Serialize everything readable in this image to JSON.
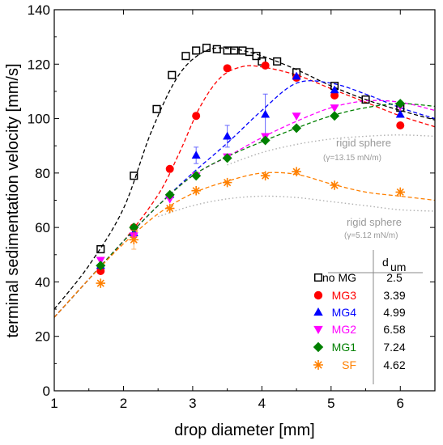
{
  "chart_data": {
    "type": "scatter",
    "xlabel": "drop diameter [mm]",
    "ylabel": "terminal sedimentation velocity [mm/s]",
    "xlim": [
      1,
      6.5
    ],
    "ylim": [
      0,
      140
    ],
    "xticks": [
      1,
      2,
      3,
      4,
      5,
      6
    ],
    "yticks": [
      0,
      20,
      40,
      60,
      80,
      100,
      120,
      140
    ],
    "legend_placement": "bottom-right",
    "legend_header": {
      "label": "d",
      "sub": "um"
    },
    "series": [
      {
        "name": "no MG",
        "dum": "2.5",
        "marker": "open-square",
        "color": "#000000",
        "x": [
          1.67,
          2.15,
          2.48,
          2.7,
          2.9,
          3.05,
          3.2,
          3.35,
          3.5,
          3.6,
          3.72,
          3.82,
          3.92,
          4.0,
          4.22,
          4.5,
          5.05,
          5.5,
          6.0
        ],
        "y": [
          52,
          79,
          103.5,
          116,
          123,
          125,
          126,
          125.5,
          125,
          125,
          125,
          124.5,
          123,
          121,
          121,
          117,
          112,
          107,
          104
        ],
        "fit_x": [
          1,
          1.5,
          2,
          2.4,
          2.8,
          3.2,
          3.6,
          4.0,
          4.5,
          5.0,
          5.5,
          6.0,
          6.5
        ],
        "fit_y": [
          30,
          46,
          67,
          95,
          116,
          125,
          125.5,
          123,
          118,
          112,
          107,
          103,
          99.5
        ]
      },
      {
        "name": "MG3",
        "dum": "3.39",
        "marker": "circle",
        "color": "#ff0000",
        "x": [
          1.67,
          2.15,
          2.67,
          3.05,
          3.5,
          4.05,
          4.5,
          5.05,
          6.0
        ],
        "y": [
          44,
          60,
          81.5,
          101,
          118.5,
          119.5,
          115,
          108.5,
          97.5
        ],
        "fit_x": [
          1,
          1.5,
          2,
          2.5,
          2.8,
          3.1,
          3.4,
          3.7,
          4.0,
          4.5,
          5.0,
          5.5,
          6.0,
          6.5
        ],
        "fit_y": [
          27,
          41,
          55,
          72,
          87,
          104,
          115,
          119,
          119,
          116,
          111,
          106,
          101,
          97
        ]
      },
      {
        "name": "MG4",
        "dum": "4.99",
        "marker": "triangle-up",
        "color": "#0000ff",
        "x": [
          1.67,
          2.15,
          2.67,
          3.05,
          3.5,
          4.05,
          4.5,
          5.05,
          6.0
        ],
        "y": [
          46,
          58,
          72,
          86.5,
          93.5,
          101.5,
          115.5,
          110.5,
          101.5
        ],
        "yerr": [
          0,
          0,
          0,
          3,
          4,
          7.5,
          0,
          0,
          0
        ],
        "fit_x": [
          1,
          1.5,
          2,
          2.5,
          3.0,
          3.5,
          4.0,
          4.5,
          5.0,
          5.5,
          6.0,
          6.5
        ],
        "fit_y": [
          27,
          41,
          55,
          68,
          80,
          91,
          103,
          113,
          113,
          109,
          104,
          100
        ]
      },
      {
        "name": "MG2",
        "dum": "6.58",
        "marker": "triangle-down",
        "color": "#ff00ff",
        "x": [
          1.67,
          2.15,
          2.67,
          3.05,
          3.5,
          4.05,
          4.5,
          5.05,
          6.0
        ],
        "y": [
          48,
          57,
          70.5,
          79,
          86,
          93.5,
          101,
          104,
          104.5
        ],
        "fit_x": [
          1,
          1.5,
          2,
          2.5,
          3.0,
          3.5,
          4.0,
          4.5,
          5.0,
          5.5,
          6.0,
          6.5
        ],
        "fit_y": [
          27,
          41,
          55,
          68,
          79,
          86,
          93,
          99,
          104,
          106.5,
          106,
          103
        ]
      },
      {
        "name": "MG1",
        "dum": "7.24",
        "marker": "diamond",
        "color": "#008000",
        "x": [
          1.67,
          2.15,
          2.67,
          3.05,
          3.5,
          4.05,
          4.5,
          5.05,
          6.0
        ],
        "y": [
          46,
          60,
          72,
          79,
          85.5,
          92,
          96.5,
          101,
          105.5
        ],
        "fit_x": [
          1,
          1.5,
          2,
          2.5,
          3.0,
          3.5,
          4.0,
          4.5,
          5.0,
          5.5,
          6.0,
          6.5
        ],
        "fit_y": [
          27,
          41,
          55,
          68,
          79,
          86,
          91.5,
          96.5,
          101,
          104,
          105.5,
          104.5
        ]
      },
      {
        "name": "SF",
        "dum": "4.62",
        "marker": "asterisk",
        "color": "#ff8000",
        "x": [
          1.67,
          2.15,
          2.67,
          3.05,
          3.5,
          4.05,
          4.5,
          5.05,
          6.0
        ],
        "y": [
          39.5,
          55.5,
          67,
          73.5,
          76.5,
          79,
          80.5,
          75.5,
          73
        ],
        "yerr": [
          0,
          3.5,
          0,
          0,
          0,
          0,
          0,
          0,
          0
        ],
        "fit_x": [
          1,
          1.5,
          2,
          2.5,
          3.0,
          3.5,
          4.0,
          4.5,
          5.0,
          5.5,
          6.0,
          6.5
        ],
        "fit_y": [
          27,
          41,
          54,
          65,
          72.5,
          77,
          80,
          79.5,
          76,
          73,
          71.5,
          70
        ]
      }
    ],
    "reference_curves": [
      {
        "label": "rigid sphere",
        "sublabel": "(γ=13.15 mN/m)",
        "color": "#b0b0b0",
        "style": "dotted",
        "x": [
          3.5,
          4.0,
          4.5,
          5.0,
          5.5,
          6.0,
          6.5
        ],
        "y": [
          83,
          87.5,
          90.5,
          92.5,
          93.5,
          94,
          93.5
        ]
      },
      {
        "label": "rigid sphere",
        "sublabel": "(γ=5.12 mN/m)",
        "color": "#b0b0b0",
        "style": "dotted",
        "x": [
          2.5,
          3.0,
          3.5,
          4.0,
          4.5,
          5.0,
          5.5,
          6.0,
          6.5
        ],
        "y": [
          64,
          68,
          70.5,
          71.5,
          71,
          69.5,
          68,
          66.5,
          66
        ]
      }
    ]
  }
}
